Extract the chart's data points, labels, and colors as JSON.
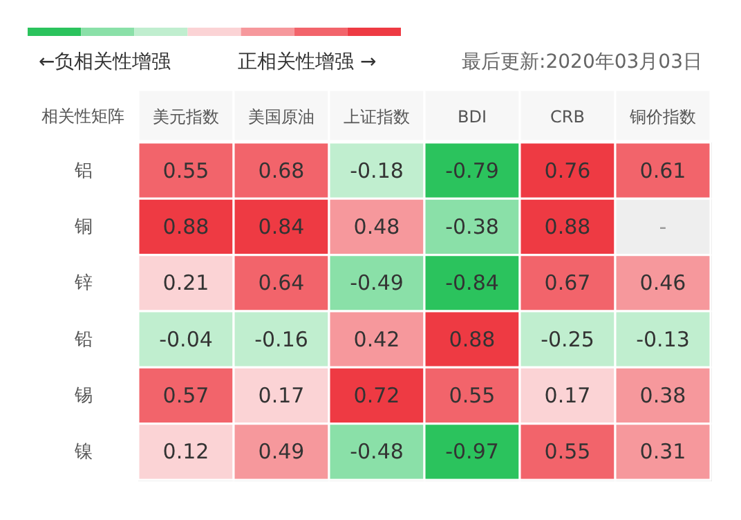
{
  "chart_data": {
    "type": "heatmap",
    "subtitle": "最后更新:2020年03月03日",
    "ylabel": "相关性矩阵",
    "annotations": [
      "←负相关性增强",
      "正相关性增强 →"
    ],
    "categories": [
      "美元指数",
      "美国原油",
      "上证指数",
      "BDI",
      "CRB",
      "铜价指数"
    ],
    "y_categories": [
      "铝",
      "铜",
      "锌",
      "铅",
      "锡",
      "镍"
    ],
    "cells": [
      [
        0.55,
        0.68,
        -0.18,
        -0.79,
        0.76,
        0.61
      ],
      [
        0.88,
        0.84,
        0.48,
        -0.38,
        0.88,
        null
      ],
      [
        0.21,
        0.64,
        -0.49,
        -0.84,
        0.67,
        0.46
      ],
      [
        -0.04,
        -0.16,
        0.42,
        0.88,
        -0.25,
        -0.13
      ],
      [
        0.57,
        0.17,
        0.72,
        0.55,
        0.17,
        0.38
      ],
      [
        0.12,
        0.49,
        -0.48,
        -0.97,
        0.55,
        0.31
      ]
    ],
    "cell_labels": [
      [
        "0.55",
        "0.68",
        "-0.18",
        "-0.79",
        "0.76",
        "0.61"
      ],
      [
        "0.88",
        "0.84",
        "0.48",
        "-0.38",
        "0.88",
        "-"
      ],
      [
        "0.21",
        "0.64",
        "-0.49",
        "-0.84",
        "0.67",
        "0.46"
      ],
      [
        "-0.04",
        "-0.16",
        "0.42",
        "0.88",
        "-0.25",
        "-0.13"
      ],
      [
        "0.57",
        "0.17",
        "0.72",
        "0.55",
        "0.17",
        "0.38"
      ],
      [
        "0.12",
        "0.49",
        "-0.48",
        "-0.97",
        "0.55",
        "0.31"
      ]
    ],
    "colors": [
      [
        "#f2646b",
        "#f2646b",
        "#c0eecf",
        "#2bc35d",
        "#ee3a43",
        "#f2646b"
      ],
      [
        "#ee3a43",
        "#ee3a43",
        "#f6989c",
        "#8ae0a8",
        "#ee3a43",
        "#eeeeee"
      ],
      [
        "#fbd3d5",
        "#f2646b",
        "#8ae0a8",
        "#2bc35d",
        "#f2646b",
        "#f6989c"
      ],
      [
        "#c0eecf",
        "#c0eecf",
        "#f6989c",
        "#ee3a43",
        "#c0eecf",
        "#c0eecf"
      ],
      [
        "#f2646b",
        "#fbd3d5",
        "#ee3a43",
        "#f2646b",
        "#fbd3d5",
        "#f6989c"
      ],
      [
        "#fbd3d5",
        "#f6989c",
        "#8ae0a8",
        "#2bc35d",
        "#f2646b",
        "#f6989c"
      ]
    ],
    "data_labels": true
  }
}
